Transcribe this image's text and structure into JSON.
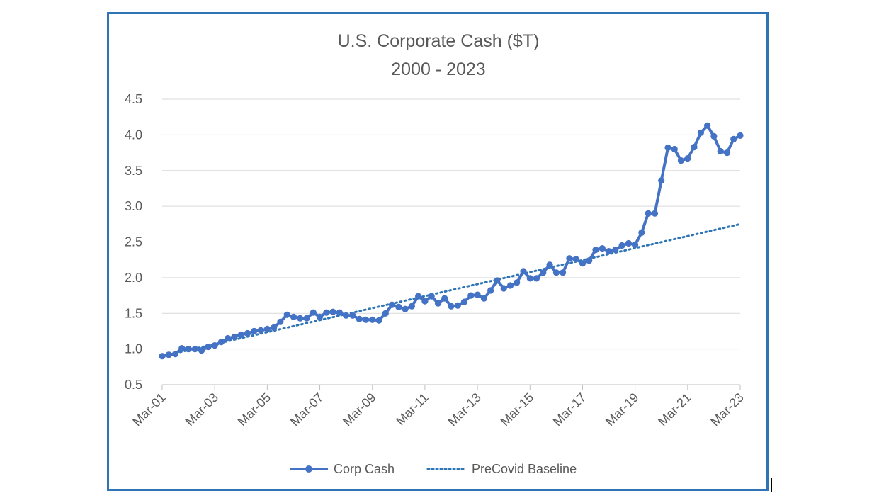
{
  "chart_data": {
    "type": "line",
    "title": "U.S. Corporate Cash ($T)",
    "subtitle": "2000 - 2023",
    "xlabel": "",
    "ylabel": "",
    "ylim": [
      0.5,
      4.5
    ],
    "yticks": [
      "0.5",
      "1.0",
      "1.5",
      "2.0",
      "2.5",
      "3.0",
      "3.5",
      "4.0",
      "4.5"
    ],
    "x_ticks": [
      "Mar-01",
      "Mar-03",
      "Mar-05",
      "Mar-07",
      "Mar-09",
      "Mar-11",
      "Mar-13",
      "Mar-15",
      "Mar-17",
      "Mar-19",
      "Mar-21",
      "Mar-23"
    ],
    "grid": true,
    "legend_position": "bottom",
    "x_start": "Mar-01",
    "x_end": "Mar-23",
    "series": [
      {
        "name": "Corp Cash",
        "color": "#4472c4",
        "style": "line-markers",
        "values": [
          0.9,
          0.92,
          0.93,
          1.01,
          1.0,
          1.0,
          0.98,
          1.03,
          1.05,
          1.1,
          1.15,
          1.17,
          1.2,
          1.22,
          1.25,
          1.26,
          1.28,
          1.3,
          1.38,
          1.48,
          1.45,
          1.43,
          1.43,
          1.51,
          1.45,
          1.51,
          1.52,
          1.51,
          1.47,
          1.47,
          1.42,
          1.41,
          1.41,
          1.4,
          1.5,
          1.62,
          1.59,
          1.56,
          1.6,
          1.74,
          1.67,
          1.74,
          1.64,
          1.71,
          1.6,
          1.61,
          1.66,
          1.75,
          1.76,
          1.71,
          1.82,
          1.96,
          1.85,
          1.89,
          1.93,
          2.09,
          1.99,
          1.99,
          2.07,
          2.18,
          2.07,
          2.07,
          2.27,
          2.26,
          2.2,
          2.24,
          2.39,
          2.41,
          2.37,
          2.39,
          2.45,
          2.48,
          2.46,
          2.63,
          2.9,
          2.9,
          3.36,
          3.82,
          3.8,
          3.64,
          3.67,
          3.83,
          4.03,
          4.13,
          3.98,
          3.77,
          3.75,
          3.94,
          3.99
        ]
      },
      {
        "name": "PreCovid Baseline",
        "color": "#2e75b6",
        "style": "dotted",
        "start_value": 0.9,
        "end_value": 2.75
      }
    ]
  }
}
